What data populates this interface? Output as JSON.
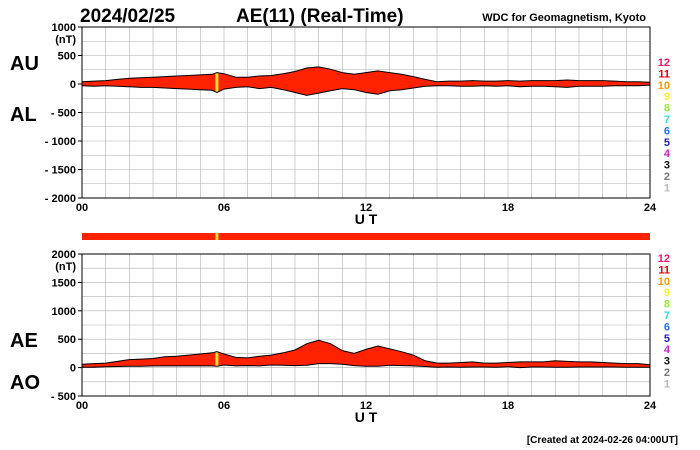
{
  "header": {
    "date": "2024/02/25",
    "title": "AE(11) (Real-Time)",
    "source": "WDC for Geomagnetism, Kyoto"
  },
  "footer": {
    "created": "[Created at 2024-02-26 04:00UT]"
  },
  "colors": {
    "fill": "#ff2200",
    "line": "#000000",
    "grid": "#b0b0b0",
    "highlight": "#ffdd33",
    "strip_bar": "#ff2200"
  },
  "station_scale": {
    "items": [
      {
        "label": "12",
        "color": "#e8176f"
      },
      {
        "label": "11",
        "color": "#e60000"
      },
      {
        "label": "10",
        "color": "#ff9900"
      },
      {
        "label": "9",
        "color": "#ffee33"
      },
      {
        "label": "8",
        "color": "#99ee33"
      },
      {
        "label": "7",
        "color": "#33dddd"
      },
      {
        "label": "6",
        "color": "#1f6fff"
      },
      {
        "label": "5",
        "color": "#1f1fbf"
      },
      {
        "label": "4",
        "color": "#cc22cc"
      },
      {
        "label": "3",
        "color": "#111111"
      },
      {
        "label": "2",
        "color": "#777777"
      },
      {
        "label": "1",
        "color": "#bbbbbb"
      }
    ]
  },
  "chart_data": [
    {
      "type": "area",
      "panel": "AU/AL",
      "labels": [
        "AU",
        "AL"
      ],
      "unit": "(nT)",
      "xlabel": "U T",
      "xlim": [
        0,
        24
      ],
      "xticks": [
        "00",
        "06",
        "12",
        "18",
        "24"
      ],
      "ylim": [
        -2000,
        1000
      ],
      "yticks": [
        {
          "v": 1000,
          "label": "1000"
        },
        {
          "v": 500,
          "label": "500"
        },
        {
          "v": 0,
          "label": "0"
        },
        {
          "v": -500,
          "label": "- 500"
        },
        {
          "v": -1000,
          "label": "- 1000"
        },
        {
          "v": -1500,
          "label": "- 1500"
        },
        {
          "v": -2000,
          "label": "- 2000"
        }
      ],
      "grid": true,
      "highlight_x": [
        5.7
      ],
      "series": [
        {
          "name": "AU",
          "x": [
            0,
            0.5,
            1,
            1.5,
            2,
            2.5,
            3,
            3.5,
            4,
            4.5,
            5,
            5.5,
            5.7,
            6,
            6.5,
            7,
            7.5,
            8,
            8.5,
            9,
            9.5,
            10,
            10.5,
            11,
            11.5,
            12,
            12.5,
            13,
            13.5,
            14,
            14.5,
            15,
            15.5,
            16,
            16.5,
            17,
            17.5,
            18,
            18.5,
            19,
            19.5,
            20,
            20.5,
            21,
            21.5,
            22,
            22.5,
            23,
            23.5,
            24
          ],
          "values": [
            40,
            50,
            60,
            80,
            100,
            110,
            120,
            130,
            140,
            150,
            160,
            170,
            200,
            180,
            120,
            120,
            140,
            150,
            180,
            220,
            280,
            300,
            260,
            200,
            170,
            200,
            230,
            200,
            170,
            130,
            80,
            40,
            50,
            50,
            60,
            50,
            50,
            60,
            50,
            60,
            60,
            60,
            70,
            60,
            60,
            60,
            50,
            40,
            40,
            30
          ]
        },
        {
          "name": "AL",
          "x": [
            0,
            0.5,
            1,
            1.5,
            2,
            2.5,
            3,
            3.5,
            4,
            4.5,
            5,
            5.5,
            5.7,
            6,
            6.5,
            7,
            7.5,
            8,
            8.5,
            9,
            9.5,
            10,
            10.5,
            11,
            11.5,
            12,
            12.5,
            13,
            13.5,
            14,
            14.5,
            15,
            15.5,
            16,
            16.5,
            17,
            17.5,
            18,
            18.5,
            19,
            19.5,
            20,
            20.5,
            21,
            21.5,
            22,
            22.5,
            23,
            23.5,
            24
          ],
          "values": [
            -30,
            -40,
            -30,
            -40,
            -50,
            -60,
            -60,
            -70,
            -80,
            -90,
            -100,
            -110,
            -150,
            -90,
            -60,
            -50,
            -80,
            -60,
            -100,
            -150,
            -200,
            -160,
            -120,
            -80,
            -100,
            -150,
            -180,
            -120,
            -100,
            -70,
            -40,
            -30,
            -30,
            -40,
            -40,
            -30,
            -40,
            -30,
            -50,
            -40,
            -40,
            -50,
            -60,
            -40,
            -40,
            -40,
            -30,
            -30,
            -30,
            -20
          ]
        }
      ]
    },
    {
      "type": "strip",
      "panel": "station-count",
      "x": [
        0,
        24
      ],
      "values": [
        11,
        11
      ],
      "highlight_x": [
        5.7
      ]
    },
    {
      "type": "area",
      "panel": "AE/AO",
      "labels": [
        "AE",
        "AO"
      ],
      "unit": "(nT)",
      "xlabel": "U T",
      "xlim": [
        0,
        24
      ],
      "xticks": [
        "00",
        "06",
        "12",
        "18",
        "24"
      ],
      "ylim": [
        -500,
        2000
      ],
      "yticks": [
        {
          "v": 2000,
          "label": "2000"
        },
        {
          "v": 1500,
          "label": "1500"
        },
        {
          "v": 1000,
          "label": "1000"
        },
        {
          "v": 500,
          "label": "500"
        },
        {
          "v": 0,
          "label": "0"
        },
        {
          "v": -500,
          "label": "- 500"
        }
      ],
      "grid": true,
      "highlight_x": [
        5.7
      ],
      "series": [
        {
          "name": "AE",
          "x": [
            0,
            0.5,
            1,
            1.5,
            2,
            2.5,
            3,
            3.5,
            4,
            4.5,
            5,
            5.5,
            5.7,
            6,
            6.5,
            7,
            7.5,
            8,
            8.5,
            9,
            9.5,
            10,
            10.5,
            11,
            11.5,
            12,
            12.5,
            13,
            13.5,
            14,
            14.5,
            15,
            15.5,
            16,
            16.5,
            17,
            17.5,
            18,
            18.5,
            19,
            19.5,
            20,
            20.5,
            21,
            21.5,
            22,
            22.5,
            23,
            23.5,
            24
          ],
          "values": [
            60,
            70,
            80,
            110,
            140,
            150,
            160,
            190,
            200,
            220,
            240,
            260,
            280,
            240,
            180,
            170,
            200,
            220,
            260,
            310,
            420,
            480,
            420,
            300,
            250,
            320,
            380,
            330,
            280,
            220,
            120,
            80,
            80,
            90,
            100,
            80,
            80,
            90,
            100,
            100,
            100,
            120,
            110,
            100,
            100,
            90,
            80,
            70,
            70,
            50
          ]
        },
        {
          "name": "AO",
          "x": [
            0,
            0.5,
            1,
            1.5,
            2,
            2.5,
            3,
            3.5,
            4,
            4.5,
            5,
            5.5,
            5.7,
            6,
            6.5,
            7,
            7.5,
            8,
            8.5,
            9,
            9.5,
            10,
            10.5,
            11,
            11.5,
            12,
            12.5,
            13,
            13.5,
            14,
            14.5,
            15,
            15.5,
            16,
            16.5,
            17,
            17.5,
            18,
            18.5,
            19,
            19.5,
            20,
            20.5,
            21,
            21.5,
            22,
            22.5,
            23,
            23.5,
            24
          ],
          "values": [
            5,
            5,
            15,
            20,
            25,
            25,
            30,
            30,
            30,
            30,
            30,
            30,
            25,
            45,
            30,
            35,
            30,
            45,
            40,
            35,
            40,
            70,
            70,
            60,
            35,
            25,
            25,
            40,
            35,
            30,
            20,
            5,
            10,
            5,
            10,
            10,
            5,
            15,
            0,
            10,
            10,
            5,
            5,
            10,
            10,
            10,
            10,
            5,
            5,
            5
          ]
        }
      ]
    }
  ]
}
